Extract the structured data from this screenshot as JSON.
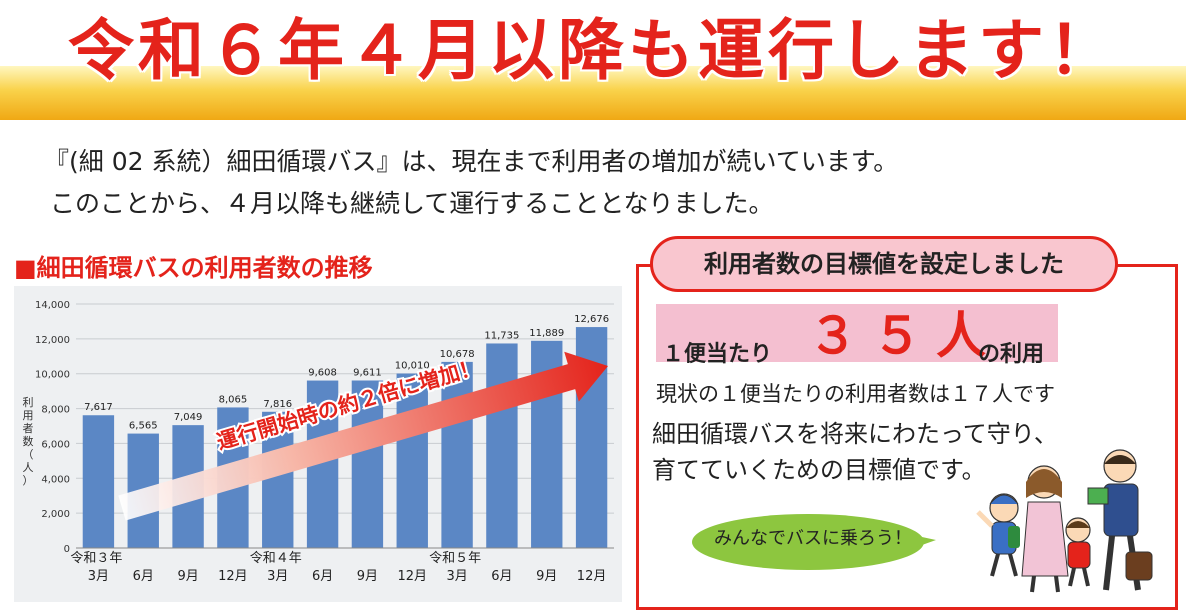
{
  "headline": "令和６年４月以降も運行します！",
  "intro": {
    "line1": "『(細 02 系統）細田循環バス』は、現在まで利用者の増加が続いています。",
    "line2": "このことから、４月以降も継続して運行することとなりました。"
  },
  "section_title": "■細田循環バスの利用者数の推移",
  "chart_data": {
    "type": "bar",
    "categories": [
      "3月",
      "6月",
      "9月",
      "12月",
      "3月",
      "6月",
      "9月",
      "12月",
      "3月",
      "6月",
      "9月",
      "12月"
    ],
    "year_labels": [
      {
        "label": "令和３年",
        "index": 0
      },
      {
        "label": "令和４年",
        "index": 4
      },
      {
        "label": "令和５年",
        "index": 8
      }
    ],
    "values": [
      7617,
      6565,
      7049,
      8065,
      7816,
      9608,
      9611,
      10010,
      10678,
      11735,
      11889,
      12676
    ],
    "value_labels": [
      "7,617",
      "6,565",
      "7,049",
      "8,065",
      "7,816",
      "9,608",
      "9,611",
      "10,010",
      "10,678",
      "11,735",
      "11,889",
      "12,676"
    ],
    "ylabel": "利用者数（人）",
    "yticks": [
      "0",
      "2,000",
      "4,000",
      "6,000",
      "8,000",
      "10,000",
      "12,000",
      "14,000"
    ],
    "ylim": [
      0,
      14000
    ],
    "annotation": "運行開始時の約２倍に増加！",
    "grid": true,
    "bar_color": "#5b87c5"
  },
  "target": {
    "title": "利用者数の目標値を設定しました",
    "per_trip": "１便当たり",
    "value": "３５人",
    "usage": "の利用",
    "current": "現状の１便当たりの利用者数は１７人です",
    "goal_line1": "細田循環バスを将来にわたって守り、",
    "goal_line2": "育てていくための目標値です。",
    "bubble": "みんなでバスに乗ろう！"
  },
  "colors": {
    "accent_red": "#e4231b",
    "banner_yellow": "#f9d24a",
    "pink": "#f4bfd0",
    "bubble_green": "#8dc63f"
  }
}
